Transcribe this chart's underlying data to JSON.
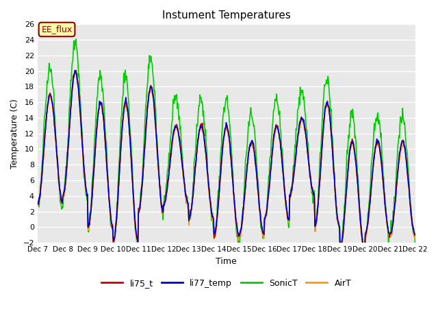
{
  "title": "Instument Temperatures",
  "xlabel": "Time",
  "ylabel": "Temperature (C)",
  "ylim": [
    -2,
    26
  ],
  "yticks": [
    -2,
    0,
    2,
    4,
    6,
    8,
    10,
    12,
    14,
    16,
    18,
    20,
    22,
    24,
    26
  ],
  "xtick_labels": [
    "Dec 7",
    "Dec 8",
    "Dec 9",
    "Dec 10",
    "Dec 11",
    "Dec 12",
    "Dec 13",
    "Dec 14",
    "Dec 15",
    "Dec 16",
    "Dec 17",
    "Dec 18",
    "Dec 19",
    "Dec 20",
    "Dec 21",
    "Dec 22"
  ],
  "annotation_text": "EE_flux",
  "line_colors": {
    "li75_t": "#cc0000",
    "li77_temp": "#0000cc",
    "SonicT": "#00cc00",
    "AirT": "#ff9900"
  },
  "line_widths": {
    "li75_t": 1.2,
    "li77_temp": 1.2,
    "SonicT": 1.2,
    "AirT": 1.2
  },
  "background_color": "#e8e8e8",
  "grid_color": "#ffffff",
  "num_days": 15,
  "points_per_day": 48
}
